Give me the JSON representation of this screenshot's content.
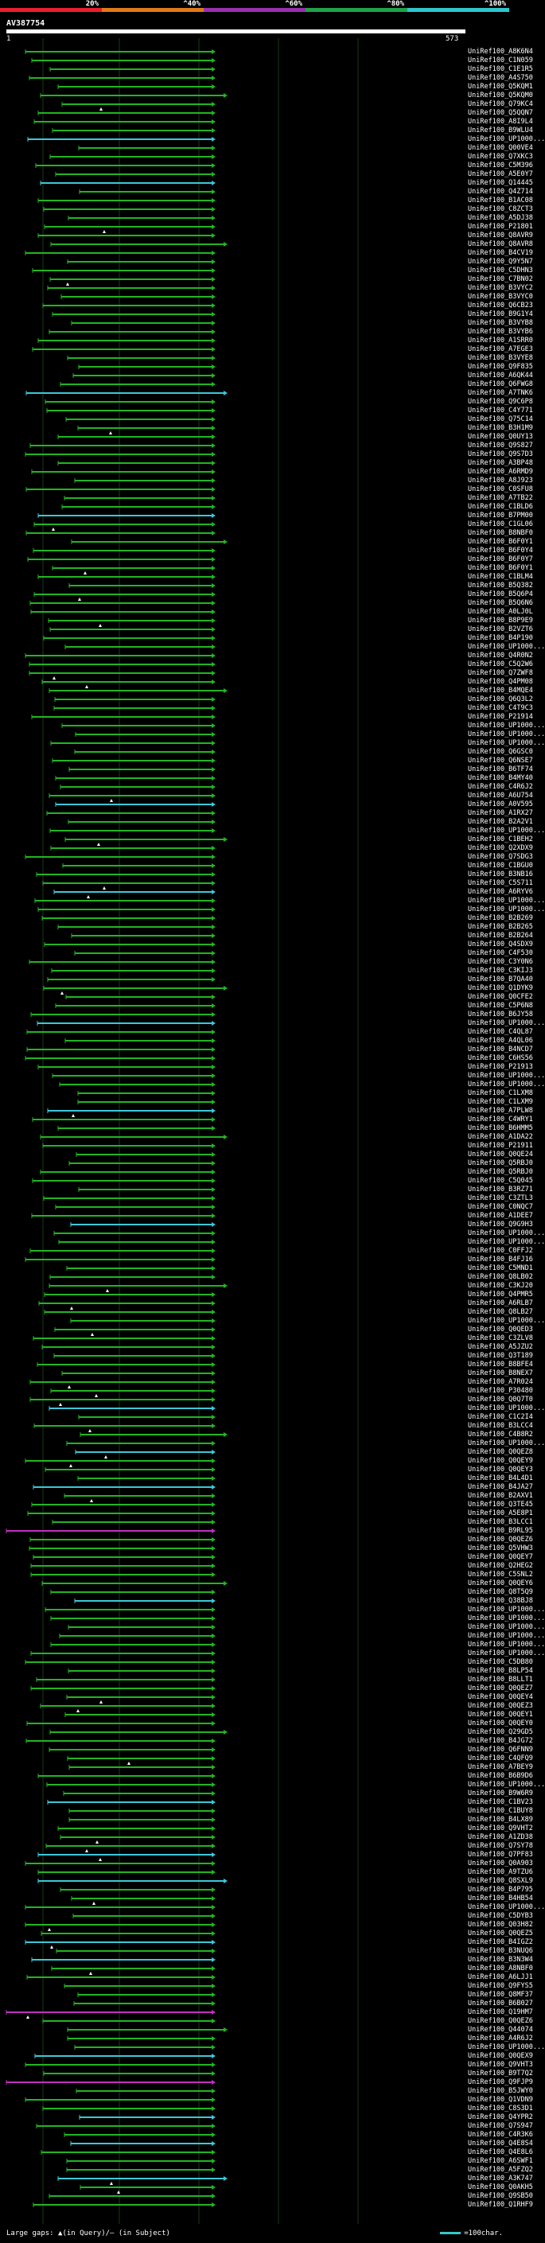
{
  "scale_bar": {
    "labels": [
      "20%",
      "^40%",
      "^60%",
      "^80%",
      "^100%"
    ],
    "colors": [
      "#e8202a",
      "#e07a18",
      "#9b2fae",
      "#1fa34a",
      "#2ec7ce"
    ]
  },
  "query": {
    "id": "AV387754",
    "start": "1",
    "end": "573"
  },
  "colors": {
    "background": "#000000",
    "hit_green": "#22b522",
    "hit_cyan": "#3cc8d8",
    "hit_magenta": "#c030c0",
    "gridline": "#1a3a1a"
  },
  "hits": [
    "UniRef100_A8K6N4",
    "UniRef100_C1N059",
    "UniRef100_C1E1R5",
    "UniRef100_A4S750",
    "UniRef100_Q5KQM1",
    "UniRef100_Q5KQM0",
    "UniRef100_Q79KC4",
    "UniRef100_Q5QQN7",
    "UniRef100_A8I9L4",
    "UniRef100_B9WLU4",
    "UniRef100_UP1000...",
    "UniRef100_Q00VE4",
    "UniRef100_Q7XKC3",
    "UniRef100_C5M396",
    "UniRef100_A5E0Y7",
    "UniRef100_Q14445",
    "UniRef100_Q4Z714",
    "UniRef100_B1AC08",
    "UniRef100_C8ZCT3",
    "UniRef100_A5DJ38",
    "UniRef100_P21801",
    "UniRef100_Q8AVR9",
    "UniRef100_Q8AVR8",
    "UniRef100_B4CV19",
    "UniRef100_Q9Y5N7",
    "UniRef100_C5DHN3",
    "UniRef100_C7BN02",
    "UniRef100_B3VYC2",
    "UniRef100_B3VYC0",
    "UniRef100_Q6CB23",
    "UniRef100_B9G1Y4",
    "UniRef100_B3VYB8",
    "UniRef100_B3VYB6",
    "UniRef100_A1SRR0",
    "UniRef100_A7EGE3",
    "UniRef100_B3VYE8",
    "UniRef100_Q9F835",
    "UniRef100_A6QK44",
    "UniRef100_Q6FWG8",
    "UniRef100_A7TNK6",
    "UniRef100_Q9C6P8",
    "UniRef100_C4Y771",
    "UniRef100_Q75C14",
    "UniRef100_B3H1M9",
    "UniRef100_Q0UY13",
    "UniRef100_Q9S827",
    "UniRef100_Q9S7D3",
    "UniRef100_A3BP48",
    "UniRef100_A6RMD9",
    "UniRef100_A8J923",
    "UniRef100_C0SFU8",
    "UniRef100_A7TB22",
    "UniRef100_C1BLD6",
    "UniRef100_B7PM00",
    "UniRef100_C1GL06",
    "UniRef100_B8NBF0",
    "UniRef100_B6F0Y1",
    "UniRef100_B6F0Y4",
    "UniRef100_B6F0Y7",
    "UniRef100_B6F0Y1",
    "UniRef100_C1BLM4",
    "UniRef100_B5Q382",
    "UniRef100_B5Q6P4",
    "UniRef100_B5Q6N6",
    "UniRef100_A0LJ0L",
    "UniRef100_B8P9E9",
    "UniRef100_B2VZT6",
    "UniRef100_B4P190",
    "UniRef100_UP1000...",
    "UniRef100_Q4R0N2",
    "UniRef100_C5Q2W6",
    "UniRef100_Q7ZWF8",
    "UniRef100_Q4PM08",
    "UniRef100_B4MQE4",
    "UniRef100_Q6Q3L2",
    "UniRef100_C4T9C3",
    "UniRef100_P21914",
    "UniRef100_UP1000...",
    "UniRef100_UP1000...",
    "UniRef100_UP1000...",
    "UniRef100_Q6GSC0",
    "UniRef100_Q6NSE7",
    "UniRef100_B6TF74",
    "UniRef100_B4MY40",
    "UniRef100_C4R6J2",
    "UniRef100_A6U754",
    "UniRef100_A0V595",
    "UniRef100_A1RX27",
    "UniRef100_B2A2V1",
    "UniRef100_UP1000...",
    "UniRef100_C1BEH2",
    "UniRef100_Q2XDX9",
    "UniRef100_Q7SDG3",
    "UniRef100_C1BGU0",
    "UniRef100_B3NB16",
    "UniRef100_C5S711",
    "UniRef100_A6RYV6",
    "UniRef100_UP1000...",
    "UniRef100_UP1000...",
    "UniRef100_B2B269",
    "UniRef100_B2B265",
    "UniRef100_B2B264",
    "UniRef100_Q4SDX9",
    "UniRef100_C4F530",
    "UniRef100_C3Y0N6",
    "UniRef100_C3KIJ3",
    "UniRef100_B7QA40",
    "UniRef100_Q1DYK9",
    "UniRef100_Q0CFE2",
    "UniRef100_C5P6N8",
    "UniRef100_B6JY58",
    "UniRef100_UP1000...",
    "UniRef100_C4QL87",
    "UniRef100_A4QL06",
    "UniRef100_B4NCD7",
    "UniRef100_C6HS56",
    "UniRef100_P21913",
    "UniRef100_UP1000...",
    "UniRef100_UP1000...",
    "UniRef100_C1LXM8",
    "UniRef100_C1LXM9",
    "UniRef100_A7PLW8",
    "UniRef100_C4WRY1",
    "UniRef100_B6HMM5",
    "UniRef100_A1DA22",
    "UniRef100_P21911",
    "UniRef100_Q0QE24",
    "UniRef100_Q5RBJ0",
    "UniRef100_Q5RBJ0",
    "UniRef100_C5Q045",
    "UniRef100_B3RZ71",
    "UniRef100_C3ZTL3",
    "UniRef100_C0NQC7",
    "UniRef100_A1DEE7",
    "UniRef100_Q9G9H3",
    "UniRef100_UP1000...",
    "UniRef100_UP1000...",
    "UniRef100_C0FFJ2",
    "UniRef100_B4FJ16",
    "UniRef100_C5MND1",
    "UniRef100_Q8LB02",
    "UniRef100_C3KJ20",
    "UniRef100_Q4PMR5",
    "UniRef100_A6RLB7",
    "UniRef100_Q8LB27",
    "UniRef100_UP1000...",
    "UniRef100_Q0QED3",
    "UniRef100_C3ZLV8",
    "UniRef100_A5JZU2",
    "UniRef100_Q3T189",
    "UniRef100_B8BFE4",
    "UniRef100_B8NEX7",
    "UniRef100_A7R024",
    "UniRef100_P30480",
    "UniRef100_Q0Q7T0",
    "UniRef100_UP1000...",
    "UniRef100_C1C2I4",
    "UniRef100_B3LCC4",
    "UniRef100_C4B8R2",
    "UniRef100_UP1000...",
    "UniRef100_Q0QEZ8",
    "UniRef100_Q0QEY9",
    "UniRef100_Q0QEY3",
    "UniRef100_B4L4D1",
    "UniRef100_B4JA27",
    "UniRef100_B2AXV1",
    "UniRef100_Q3TE45",
    "UniRef100_A5E8P1",
    "UniRef100_B3LCC1",
    "UniRef100_B9RL95",
    "UniRef100_Q0QEZ6",
    "UniRef100_Q5VHW3",
    "UniRef100_Q0QEY7",
    "UniRef100_Q2HEG2",
    "UniRef100_C5SNL2",
    "UniRef100_Q0QEY6",
    "UniRef100_Q8T5Q9",
    "UniRef100_Q38BJ8",
    "UniRef100_UP1000...",
    "UniRef100_UP1000...",
    "UniRef100_UP1000...",
    "UniRef100_UP1000...",
    "UniRef100_UP1000...",
    "UniRef100_UP1000...",
    "UniRef100_C5DB80",
    "UniRef100_B8LP54",
    "UniRef100_B8LLT1",
    "UniRef100_Q0QEZ7",
    "UniRef100_Q0QEY4",
    "UniRef100_Q0QEZ3",
    "UniRef100_Q0QEY1",
    "UniRef100_Q0QEY0",
    "UniRef100_Q29GD5",
    "UniRef100_B4JG72",
    "UniRef100_Q6FNN9",
    "UniRef100_C4QFQ9",
    "UniRef100_A7BEY9",
    "UniRef100_B6B9D6",
    "UniRef100_UP1000...",
    "UniRef100_B9W6R9",
    "UniRef100_C1BV23",
    "UniRef100_C1BUY8",
    "UniRef100_B4LX89",
    "UniRef100_Q9VHT2",
    "UniRef100_A1ZD38",
    "UniRef100_Q7SY78",
    "UniRef100_Q7PF83",
    "UniRef100_Q0A903",
    "UniRef100_A9TZU6",
    "UniRef100_Q8SXL9",
    "UniRef100_B4P795",
    "UniRef100_B4HB54",
    "UniRef100_UP1000...",
    "UniRef100_C5DYB3",
    "UniRef100_Q03H82",
    "UniRef100_Q0QEZ5",
    "UniRef100_B4IGZ2",
    "UniRef100_B3NUQ6",
    "UniRef100_B3N3W4",
    "UniRef100_A8NBF0",
    "UniRef100_A6LJJ1",
    "UniRef100_Q9FYS5",
    "UniRef100_Q8MF37",
    "UniRef100_B6B027",
    "UniRef100_Q19HM7",
    "UniRef100_Q0QEZ6",
    "UniRef100_Q44074",
    "UniRef100_A4R6J2",
    "UniRef100_UP1000...",
    "UniRef100_Q0QEX9",
    "UniRef100_Q9VHT3",
    "UniRef100_B9T7Q2",
    "UniRef100_Q9FJP9",
    "UniRef100_B5JWY0",
    "UniRef100_Q1VDN9",
    "UniRef100_C8S3D1",
    "UniRef100_Q4YPR2",
    "UniRef100_Q7S947",
    "UniRef100_C4R3K6",
    "UniRef100_Q4E8S4",
    "UniRef100_Q4E8L6",
    "UniRef100_A6SWF1",
    "UniRef100_A5FZQ2",
    "UniRef100_A3K747",
    "UniRef100_Q0AKH5",
    "UniRef100_Q9SB50",
    "UniRef100_Q1RHF9"
  ],
  "footer": {
    "legend": "Large gaps: ▲(in Query)/– (in Subject)",
    "key": "=100char."
  }
}
